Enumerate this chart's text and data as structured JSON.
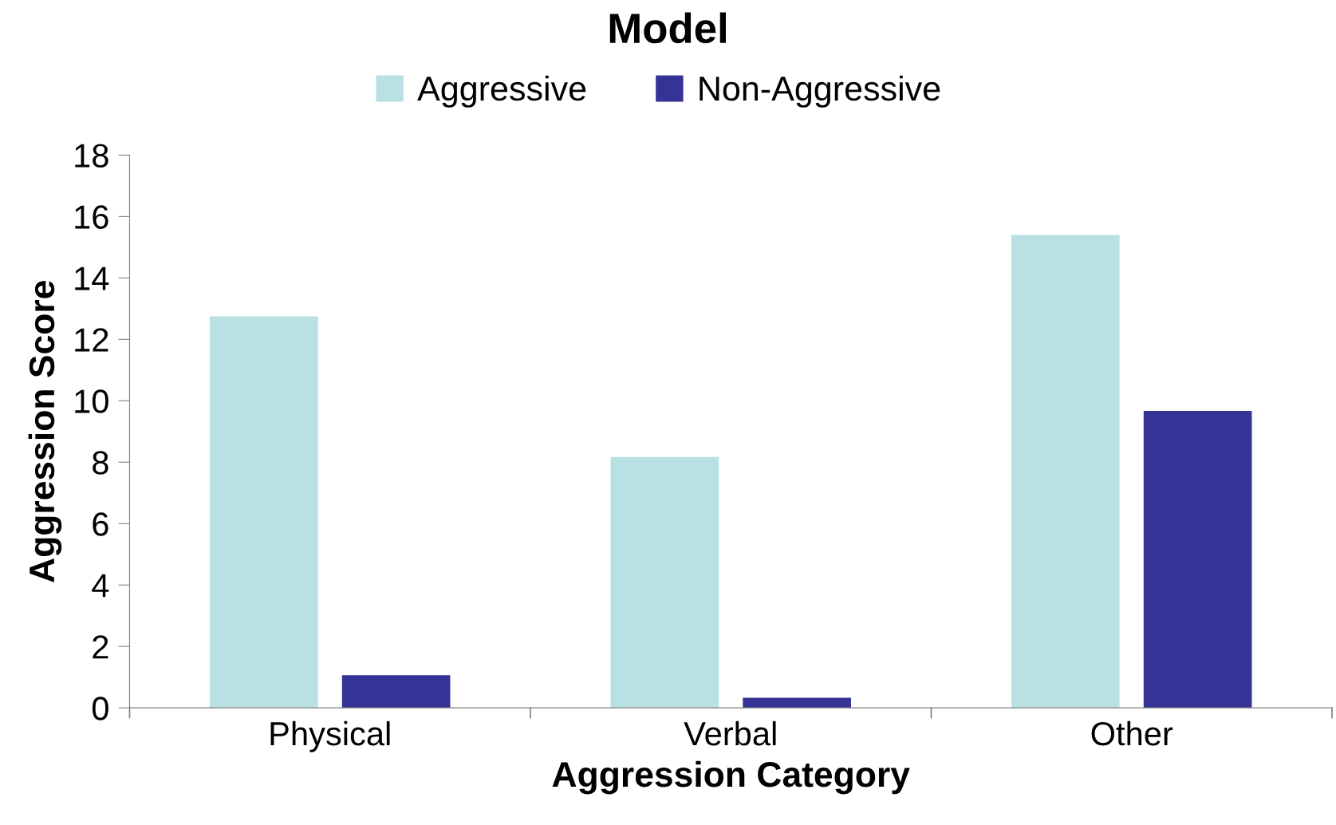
{
  "chart_data": {
    "type": "bar",
    "title": "Model",
    "xlabel": "Aggression Category",
    "ylabel": "Aggression Score",
    "categories": [
      "Physical",
      "Verbal",
      "Other"
    ],
    "series": [
      {
        "name": "Aggressive",
        "color": "#b9e0e2",
        "values": [
          12.75,
          8.17,
          15.4
        ]
      },
      {
        "name": "Non-Aggressive",
        "color": "#363396",
        "values": [
          1.06,
          0.33,
          9.67
        ]
      }
    ],
    "ylim": [
      0,
      18
    ],
    "yticks": [
      0,
      2,
      4,
      6,
      8,
      10,
      12,
      14,
      16,
      18
    ],
    "grid": false,
    "legend": "top"
  }
}
